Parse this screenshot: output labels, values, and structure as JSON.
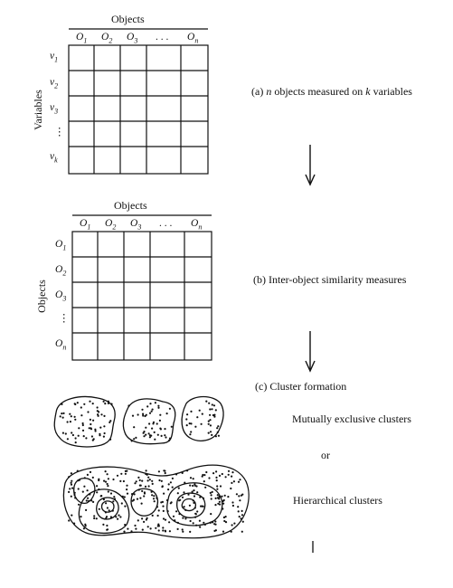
{
  "panel_a": {
    "header": "Objects",
    "columns": [
      "O1",
      "O2",
      "O3",
      ". . .",
      "On"
    ],
    "row_axis": "Variables",
    "rows": [
      "v1",
      "v2",
      "v3",
      "⋮",
      "vk"
    ],
    "caption_prefix": "(a)",
    "caption_n": "n",
    "caption_mid": "objects measured on",
    "caption_k": "k",
    "caption_suffix": "variables"
  },
  "panel_b": {
    "header": "Objects",
    "columns": [
      "O1",
      "O2",
      "O3",
      ". . .",
      "On"
    ],
    "row_axis": "Objects",
    "rows": [
      "O1",
      "O2",
      "O3",
      "⋮",
      "On"
    ],
    "caption": "(b)  Inter-object similarity measures"
  },
  "panel_c": {
    "caption": "(c)  Cluster formation",
    "label_exclusive": "Mutually exclusive clusters",
    "label_or": "or",
    "label_hierarchical": "Hierarchical  clusters"
  }
}
